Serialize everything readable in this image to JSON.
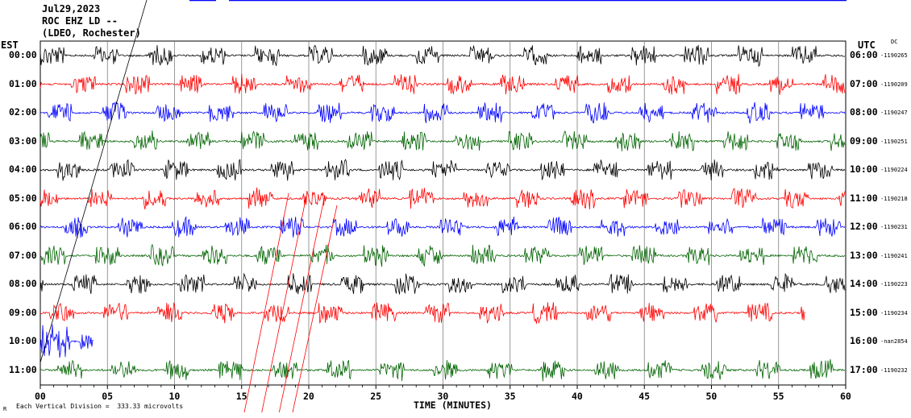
{
  "header": {
    "date": "Jul29,2023",
    "station": "ROC EHZ LD --",
    "location": "(LDEO, Rochester)"
  },
  "left_zone": "EST",
  "right_zone": "UTC",
  "dc_label": "DC",
  "footer": {
    "scale_note": "Each Vertical Division =  333.33 microvolts",
    "corner_mark": "R"
  },
  "colors": {
    "cycle": [
      "#000000",
      "#ff0000",
      "#0000ff",
      "#006400"
    ],
    "grid": "#808080",
    "event_line": "#ff0000"
  },
  "chart_data": {
    "type": "line",
    "title": "Jul29,2023",
    "xlabel": "TIME (MINUTES)",
    "ylabel": "",
    "xlim": [
      0,
      60
    ],
    "x_ticks": [
      "00",
      "05",
      "10",
      "15",
      "20",
      "25",
      "30",
      "35",
      "40",
      "45",
      "50",
      "55",
      "60"
    ],
    "grid": true,
    "rows": [
      {
        "left": "00:00",
        "right": "06:00",
        "dc": "-1190265"
      },
      {
        "left": "01:00",
        "right": "07:00",
        "dc": "-1190209"
      },
      {
        "left": "02:00",
        "right": "08:00",
        "dc": "-1190247"
      },
      {
        "left": "03:00",
        "right": "09:00",
        "dc": "-1190251"
      },
      {
        "left": "04:00",
        "right": "10:00",
        "dc": "-1190224"
      },
      {
        "left": "05:00",
        "right": "11:00",
        "dc": "-1190218"
      },
      {
        "left": "06:00",
        "right": "12:00",
        "dc": "-1190231"
      },
      {
        "left": "07:00",
        "right": "13:00",
        "dc": "-1190241"
      },
      {
        "left": "08:00",
        "right": "14:00",
        "dc": "-1190223"
      },
      {
        "left": "09:00",
        "right": "15:00",
        "dc": "-1190234"
      },
      {
        "left": "10:00",
        "right": "16:00",
        "dc": "-nan2854"
      },
      {
        "left": "11:00",
        "right": "17:00",
        "dc": "-1190232"
      }
    ]
  }
}
